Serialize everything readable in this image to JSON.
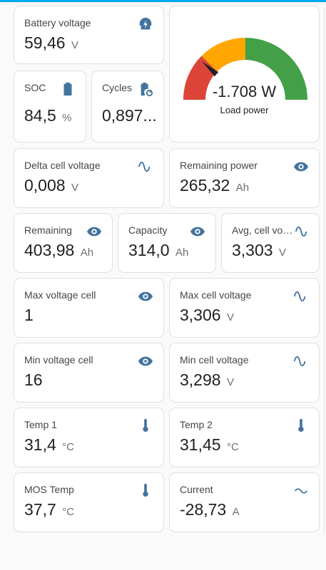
{
  "colors": {
    "icon": "#44739e",
    "gauge_red": "#db4437",
    "gauge_orange": "#ffa600",
    "gauge_green": "#43a047"
  },
  "cards": {
    "battery_voltage": {
      "name": "Battery voltage",
      "value": "59,46",
      "unit": "V",
      "icon": "battery-charging-icon"
    },
    "soc": {
      "name": "SOC",
      "value": "84,5",
      "unit": "%",
      "icon": "battery-icon"
    },
    "cycles": {
      "name": "Cycles",
      "value": "0,897...",
      "unit": "",
      "icon": "battery-sync-icon"
    },
    "delta_cell_voltage": {
      "name": "Delta cell voltage",
      "value": "0,008",
      "unit": "V",
      "icon": "sine-wave-icon"
    },
    "remaining_power": {
      "name": "Remaining power",
      "value": "265,32",
      "unit": "Ah",
      "icon": "eye-icon"
    },
    "remaining": {
      "name": "Remaining",
      "value": "403,98",
      "unit": "Ah",
      "icon": "eye-icon"
    },
    "capacity": {
      "name": "Capacity",
      "value": "314,0",
      "unit": "Ah",
      "icon": "eye-icon"
    },
    "avg_cell_voltage": {
      "name": "Avg, cell vol...",
      "value": "3,303",
      "unit": "V",
      "icon": "sine-wave-icon"
    },
    "max_voltage_cell": {
      "name": "Max voltage cell",
      "value": "1",
      "unit": "",
      "icon": "eye-icon"
    },
    "max_cell_voltage": {
      "name": "Max cell voltage",
      "value": "3,306",
      "unit": "V",
      "icon": "sine-wave-icon"
    },
    "min_voltage_cell": {
      "name": "Min voltage cell",
      "value": "16",
      "unit": "",
      "icon": "eye-icon"
    },
    "min_cell_voltage": {
      "name": "Min cell voltage",
      "value": "3,298",
      "unit": "V",
      "icon": "sine-wave-icon"
    },
    "temp1": {
      "name": "Temp 1",
      "value": "31,4",
      "unit": "°C",
      "icon": "thermometer-icon"
    },
    "temp2": {
      "name": "Temp 2",
      "value": "31,45",
      "unit": "°C",
      "icon": "thermometer-icon"
    },
    "mos_temp": {
      "name": "MOS Temp",
      "value": "37,7",
      "unit": "°C",
      "icon": "thermometer-icon"
    },
    "current": {
      "name": "Current",
      "value": "-28,73",
      "unit": "A",
      "icon": "current-ac-icon"
    }
  },
  "gauge": {
    "value": "-1.708 W",
    "name": "Load power",
    "needle_fraction": 0.23
  }
}
